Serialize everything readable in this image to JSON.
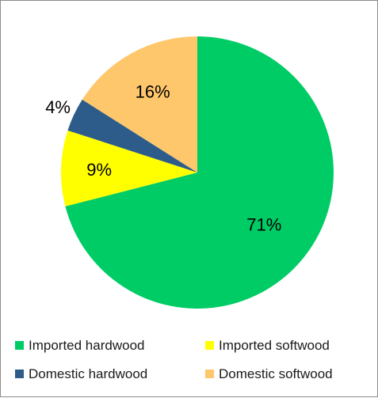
{
  "chart_data": {
    "type": "pie",
    "title": "",
    "slices": [
      {
        "label": "Imported hardwood",
        "value": 71,
        "display": "71%",
        "color": "#00CC66"
      },
      {
        "label": "Imported softwood",
        "value": 9,
        "display": "9%",
        "color": "#FFFF00"
      },
      {
        "label": "Domestic hardwood",
        "value": 4,
        "display": "4%",
        "color": "#2E5C8A"
      },
      {
        "label": "Domestic softwood",
        "value": 16,
        "display": "16%",
        "color": "#FFC76B"
      }
    ],
    "start": "12 o'clock",
    "direction": "clockwise",
    "legend_position": "bottom"
  }
}
